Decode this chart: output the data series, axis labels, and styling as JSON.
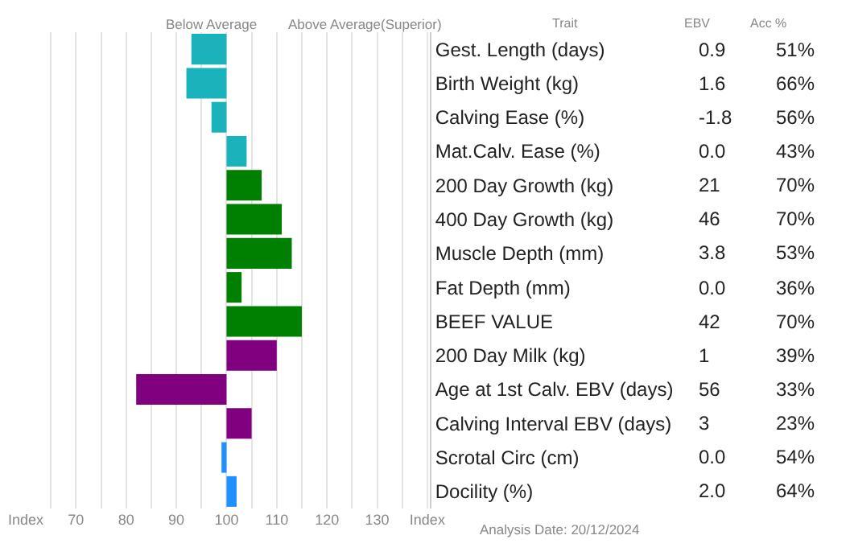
{
  "chart_data": [
    {
      "type": "bar",
      "orientation": "horizontal",
      "categories": [
        "Gest. Length (days)",
        "Birth Weight (kg)",
        "Calving Ease (%)",
        "Mat.Calv. Ease (%)",
        "200 Day Growth (kg)",
        "400 Day Growth (kg)",
        "Muscle Depth (mm)",
        "Fat Depth (mm)",
        "BEEF VALUE",
        "200 Day Milk (kg)",
        "Age at 1st Calv. EBV (days)",
        "Calving Interval EBV (days)",
        "Scrotal Circ (cm)",
        "Docility (%)"
      ],
      "base": [
        100,
        100,
        100,
        100,
        100,
        100,
        100,
        100,
        100,
        100,
        100,
        100,
        100,
        100
      ],
      "values": [
        -7,
        -8,
        -3,
        4,
        7,
        11,
        13,
        3,
        15,
        10,
        -18,
        5,
        -1,
        2
      ],
      "colors": [
        "#1ab3bb",
        "#1ab3bb",
        "#1ab3bb",
        "#1ab3bb",
        "#008000",
        "#008000",
        "#008000",
        "#008000",
        "#008000",
        "#800080",
        "#800080",
        "#800080",
        "#1e90ff",
        "#1e90ff"
      ],
      "xlim": [
        60,
        140.5
      ],
      "xticks": [
        {
          "value": 60,
          "label": "Index"
        },
        {
          "value": 65,
          "label": null
        },
        70,
        {
          "value": 75,
          "label": null
        },
        80,
        {
          "value": 85,
          "label": null
        },
        90,
        {
          "value": 95,
          "label": null
        },
        100,
        {
          "value": 105,
          "label": null
        },
        110,
        {
          "value": 115,
          "label": null
        },
        120,
        {
          "value": 125,
          "label": null
        },
        130,
        {
          "value": 135,
          "label": null
        },
        {
          "value": 140,
          "label": "Index"
        }
      ],
      "grid": "x",
      "legend": false,
      "annotations": [
        "Below Average",
        "Above Average(Superior)"
      ]
    },
    {
      "type": "other",
      "annotations": [
        "Trait",
        "EBV",
        "Acc %",
        "0.9",
        "51%",
        "1.6",
        "66%",
        "-1.8",
        "56%",
        "0.0",
        "43%",
        "21",
        "70%",
        "46",
        "70%",
        "3.8",
        "53%",
        "0.0",
        "36%",
        "42",
        "70%",
        "1",
        "39%",
        "56",
        "33%",
        "3",
        "23%",
        "0.0",
        "54%",
        "2.0",
        "64%",
        "Analysis Date: 20/12/2024"
      ]
    }
  ]
}
